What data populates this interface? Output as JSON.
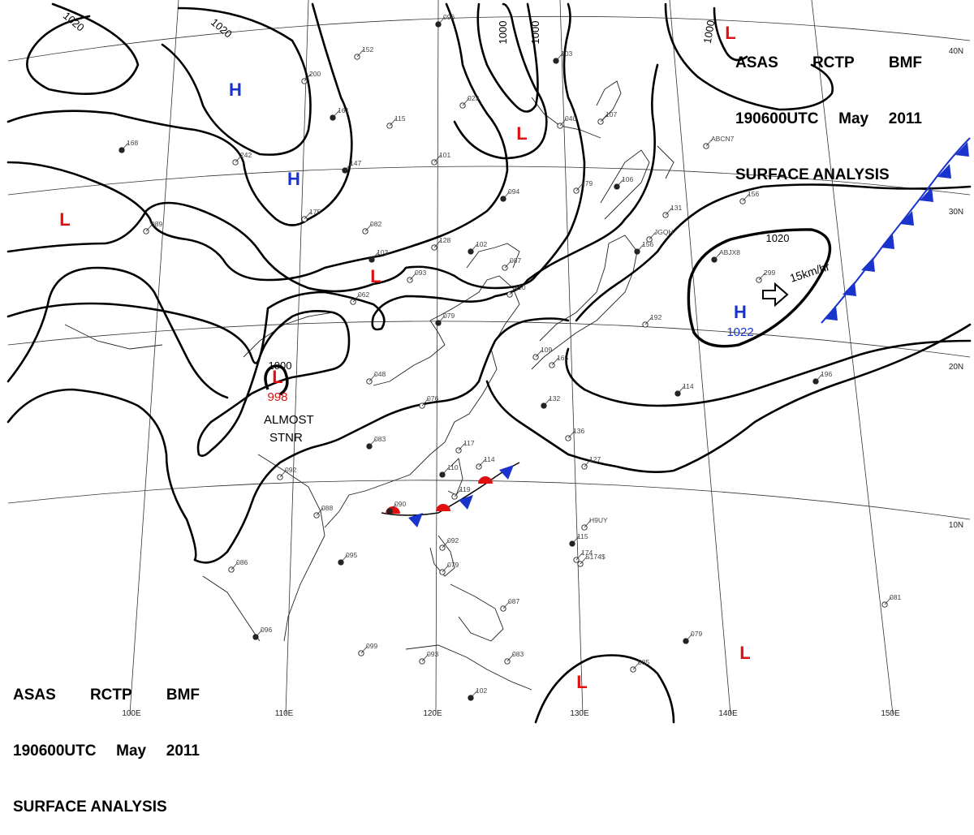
{
  "header_top": {
    "agency_line": [
      "ASAS",
      "RCTP",
      "BMF"
    ],
    "time_line": [
      "190600UTC",
      "May",
      "2011"
    ],
    "title": "SURFACE ANALYSIS"
  },
  "header_bottom": {
    "agency_line": [
      "ASAS",
      "RCTP",
      "BMF"
    ],
    "time_line": [
      "190600UTC",
      "May",
      "2011"
    ],
    "title": "SURFACE ANALYSIS"
  },
  "longitude_labels": [
    "100E",
    "110E",
    "120E",
    "130E",
    "140E",
    "150E"
  ],
  "latitude_labels": [
    "40N",
    "30N",
    "20N",
    "10N"
  ],
  "isobar_labels": [
    "1020",
    "1020",
    "1000",
    "1000",
    "1000",
    "1000",
    "1020"
  ],
  "pressure_centers": [
    {
      "type": "H",
      "color": "#1a33cc"
    },
    {
      "type": "H",
      "color": "#1a33cc"
    },
    {
      "type": "H",
      "color": "#1a33cc",
      "value": "1022"
    },
    {
      "type": "L",
      "color": "#e01010"
    },
    {
      "type": "L",
      "color": "#e01010"
    },
    {
      "type": "L",
      "color": "#e01010"
    },
    {
      "type": "L",
      "color": "#e01010",
      "value": "998"
    },
    {
      "type": "L",
      "color": "#e01010"
    },
    {
      "type": "L",
      "color": "#e01010"
    },
    {
      "type": "L",
      "color": "#e01010"
    }
  ],
  "annotations": {
    "low_status_line1": "ALMOST",
    "low_status_line2": "STNR",
    "motion": "15km/hr"
  },
  "station_labels": [
    "096",
    "152",
    "200",
    "161",
    "115",
    "242",
    "147",
    "175",
    "082",
    "103",
    "093",
    "062",
    "079",
    "101",
    "128",
    "102",
    "087",
    "110",
    "094",
    "023",
    "040",
    "103",
    "107",
    "179",
    "106",
    "131",
    "156",
    "156",
    "299",
    "192",
    "114",
    "048",
    "076",
    "083",
    "092",
    "117",
    "110",
    "114",
    "119",
    "090",
    "088",
    "086",
    "095",
    "092",
    "079",
    "096",
    "099",
    "093",
    "102",
    "087",
    "083",
    "115",
    "127",
    "081",
    "079",
    "085",
    "136",
    "132",
    "109",
    "165",
    "168",
    "089",
    "174",
    "196",
    "ABCN7",
    "JGQH",
    "ABJX8",
    "H9UY",
    "S174$"
  ],
  "colors": {
    "isobar": "#000000",
    "high": "#1a33cc",
    "low": "#e01010",
    "cold_front": "#1a33cc",
    "warm_front": "#e01010",
    "coastline": "#222222"
  }
}
